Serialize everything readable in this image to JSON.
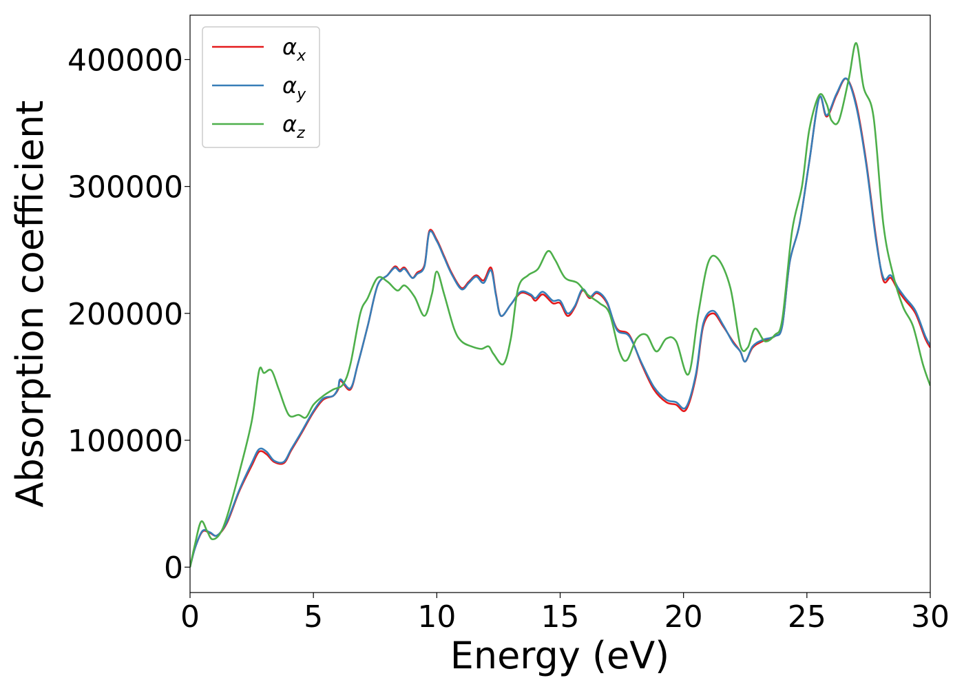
{
  "chart_data": {
    "type": "line",
    "title": "",
    "xlabel": "Energy (eV)",
    "ylabel": "Absorption coefficient",
    "xlim": [
      0,
      30
    ],
    "ylim": [
      -20000,
      435000
    ],
    "xticks": [
      0,
      5,
      10,
      15,
      20,
      25,
      30
    ],
    "yticks": [
      0,
      100000,
      200000,
      300000,
      400000
    ],
    "grid": false,
    "legend_position": "upper-left",
    "series": [
      {
        "name": "α_x",
        "symbol": "α",
        "subscript": "x",
        "color": "#e41a1c",
        "points": [
          [
            0,
            0
          ],
          [
            0.2,
            15000
          ],
          [
            0.5,
            28000
          ],
          [
            0.8,
            27000
          ],
          [
            1.1,
            25000
          ],
          [
            1.5,
            35000
          ],
          [
            2.0,
            60000
          ],
          [
            2.5,
            80000
          ],
          [
            2.8,
            91000
          ],
          [
            3.1,
            89000
          ],
          [
            3.4,
            83000
          ],
          [
            3.8,
            82000
          ],
          [
            4.1,
            92000
          ],
          [
            4.5,
            105000
          ],
          [
            5.0,
            122000
          ],
          [
            5.4,
            132000
          ],
          [
            5.8,
            135000
          ],
          [
            6.0,
            140000
          ],
          [
            6.1,
            147000
          ],
          [
            6.5,
            140000
          ],
          [
            6.8,
            160000
          ],
          [
            7.2,
            190000
          ],
          [
            7.6,
            222000
          ],
          [
            8.0,
            230000
          ],
          [
            8.3,
            237000
          ],
          [
            8.5,
            234000
          ],
          [
            8.7,
            236000
          ],
          [
            9.0,
            228000
          ],
          [
            9.2,
            232000
          ],
          [
            9.5,
            238000
          ],
          [
            9.7,
            265000
          ],
          [
            10.0,
            258000
          ],
          [
            10.3,
            245000
          ],
          [
            10.6,
            232000
          ],
          [
            11.0,
            220000
          ],
          [
            11.3,
            225000
          ],
          [
            11.6,
            230000
          ],
          [
            11.9,
            226000
          ],
          [
            12.2,
            236000
          ],
          [
            12.4,
            215000
          ],
          [
            12.6,
            198000
          ],
          [
            13.0,
            207000
          ],
          [
            13.4,
            216000
          ],
          [
            13.8,
            214000
          ],
          [
            14.0,
            210000
          ],
          [
            14.3,
            215000
          ],
          [
            14.7,
            208000
          ],
          [
            15.0,
            208000
          ],
          [
            15.3,
            198000
          ],
          [
            15.6,
            205000
          ],
          [
            15.9,
            218000
          ],
          [
            16.2,
            212000
          ],
          [
            16.5,
            216000
          ],
          [
            16.9,
            208000
          ],
          [
            17.3,
            188000
          ],
          [
            17.8,
            183000
          ],
          [
            18.3,
            160000
          ],
          [
            18.8,
            140000
          ],
          [
            19.3,
            130000
          ],
          [
            19.7,
            128000
          ],
          [
            20.1,
            124000
          ],
          [
            20.5,
            150000
          ],
          [
            20.8,
            190000
          ],
          [
            21.2,
            200000
          ],
          [
            21.6,
            190000
          ],
          [
            22.0,
            178000
          ],
          [
            22.3,
            170000
          ],
          [
            22.5,
            162000
          ],
          [
            22.8,
            173000
          ],
          [
            23.2,
            178000
          ],
          [
            23.7,
            182000
          ],
          [
            24.0,
            190000
          ],
          [
            24.3,
            240000
          ],
          [
            24.7,
            270000
          ],
          [
            25.1,
            320000
          ],
          [
            25.5,
            370000
          ],
          [
            25.8,
            355000
          ],
          [
            26.2,
            372000
          ],
          [
            26.6,
            385000
          ],
          [
            27.0,
            365000
          ],
          [
            27.4,
            320000
          ],
          [
            27.8,
            260000
          ],
          [
            28.1,
            226000
          ],
          [
            28.4,
            228000
          ],
          [
            28.7,
            218000
          ],
          [
            29.0,
            210000
          ],
          [
            29.4,
            200000
          ],
          [
            29.8,
            180000
          ],
          [
            30.0,
            173000
          ]
        ]
      },
      {
        "name": "α_y",
        "symbol": "α",
        "subscript": "y",
        "color": "#377eb8",
        "points": [
          [
            0,
            0
          ],
          [
            0.2,
            15000
          ],
          [
            0.5,
            28500
          ],
          [
            0.8,
            27500
          ],
          [
            1.1,
            25000
          ],
          [
            1.5,
            36000
          ],
          [
            2.0,
            61000
          ],
          [
            2.5,
            82000
          ],
          [
            2.8,
            93000
          ],
          [
            3.1,
            91000
          ],
          [
            3.4,
            84000
          ],
          [
            3.8,
            83000
          ],
          [
            4.1,
            93000
          ],
          [
            4.5,
            106000
          ],
          [
            5.0,
            123000
          ],
          [
            5.4,
            133000
          ],
          [
            5.8,
            135000
          ],
          [
            6.0,
            141000
          ],
          [
            6.1,
            148000
          ],
          [
            6.5,
            141000
          ],
          [
            6.8,
            160000
          ],
          [
            7.2,
            190000
          ],
          [
            7.6,
            222000
          ],
          [
            8.0,
            230000
          ],
          [
            8.3,
            236000
          ],
          [
            8.5,
            233000
          ],
          [
            8.7,
            235000
          ],
          [
            9.0,
            228000
          ],
          [
            9.2,
            231000
          ],
          [
            9.5,
            237000
          ],
          [
            9.7,
            264000
          ],
          [
            10.0,
            257000
          ],
          [
            10.3,
            244000
          ],
          [
            10.6,
            231000
          ],
          [
            11.0,
            219000
          ],
          [
            11.3,
            224000
          ],
          [
            11.6,
            229000
          ],
          [
            11.9,
            224000
          ],
          [
            12.2,
            234000
          ],
          [
            12.4,
            214000
          ],
          [
            12.6,
            198000
          ],
          [
            13.0,
            207000
          ],
          [
            13.4,
            217000
          ],
          [
            13.8,
            215000
          ],
          [
            14.0,
            212000
          ],
          [
            14.3,
            217000
          ],
          [
            14.7,
            210000
          ],
          [
            15.0,
            210000
          ],
          [
            15.3,
            200000
          ],
          [
            15.6,
            206000
          ],
          [
            15.9,
            219000
          ],
          [
            16.2,
            213000
          ],
          [
            16.5,
            217000
          ],
          [
            16.9,
            209000
          ],
          [
            17.3,
            187000
          ],
          [
            17.8,
            182000
          ],
          [
            18.3,
            161000
          ],
          [
            18.8,
            142000
          ],
          [
            19.3,
            132000
          ],
          [
            19.7,
            130000
          ],
          [
            20.1,
            126000
          ],
          [
            20.5,
            152000
          ],
          [
            20.8,
            192000
          ],
          [
            21.2,
            202000
          ],
          [
            21.6,
            191000
          ],
          [
            22.0,
            177000
          ],
          [
            22.3,
            170000
          ],
          [
            22.5,
            162000
          ],
          [
            22.8,
            174000
          ],
          [
            23.2,
            179000
          ],
          [
            23.7,
            182000
          ],
          [
            24.0,
            190000
          ],
          [
            24.3,
            240000
          ],
          [
            24.7,
            270000
          ],
          [
            25.1,
            320000
          ],
          [
            25.5,
            370000
          ],
          [
            25.8,
            356000
          ],
          [
            26.2,
            373000
          ],
          [
            26.6,
            385000
          ],
          [
            27.0,
            363000
          ],
          [
            27.4,
            318000
          ],
          [
            27.8,
            258000
          ],
          [
            28.1,
            228000
          ],
          [
            28.4,
            230000
          ],
          [
            28.7,
            220000
          ],
          [
            29.0,
            212000
          ],
          [
            29.4,
            202000
          ],
          [
            29.8,
            182000
          ],
          [
            30.0,
            175000
          ]
        ]
      },
      {
        "name": "α_z",
        "symbol": "α",
        "subscript": "z",
        "color": "#4daf4a",
        "points": [
          [
            0,
            0
          ],
          [
            0.2,
            18000
          ],
          [
            0.45,
            36000
          ],
          [
            0.7,
            28000
          ],
          [
            0.9,
            22000
          ],
          [
            1.2,
            26000
          ],
          [
            1.5,
            40000
          ],
          [
            2.0,
            75000
          ],
          [
            2.5,
            115000
          ],
          [
            2.8,
            155000
          ],
          [
            3.0,
            153000
          ],
          [
            3.3,
            155000
          ],
          [
            3.6,
            140000
          ],
          [
            4.0,
            120000
          ],
          [
            4.4,
            120000
          ],
          [
            4.7,
            118000
          ],
          [
            5.0,
            128000
          ],
          [
            5.4,
            135000
          ],
          [
            5.8,
            140000
          ],
          [
            6.2,
            144000
          ],
          [
            6.5,
            160000
          ],
          [
            6.9,
            200000
          ],
          [
            7.2,
            212000
          ],
          [
            7.6,
            228000
          ],
          [
            8.0,
            225000
          ],
          [
            8.4,
            218000
          ],
          [
            8.7,
            222000
          ],
          [
            9.1,
            213000
          ],
          [
            9.5,
            198000
          ],
          [
            9.8,
            215000
          ],
          [
            10.0,
            233000
          ],
          [
            10.3,
            215000
          ],
          [
            10.7,
            188000
          ],
          [
            11.0,
            178000
          ],
          [
            11.4,
            174000
          ],
          [
            11.8,
            172000
          ],
          [
            12.1,
            174000
          ],
          [
            12.3,
            168000
          ],
          [
            12.7,
            160000
          ],
          [
            13.0,
            180000
          ],
          [
            13.3,
            220000
          ],
          [
            13.7,
            230000
          ],
          [
            14.1,
            235000
          ],
          [
            14.5,
            249000
          ],
          [
            14.8,
            242000
          ],
          [
            15.2,
            228000
          ],
          [
            15.7,
            224000
          ],
          [
            16.1,
            215000
          ],
          [
            16.6,
            208000
          ],
          [
            17.0,
            200000
          ],
          [
            17.4,
            170000
          ],
          [
            17.7,
            163000
          ],
          [
            18.1,
            180000
          ],
          [
            18.5,
            183000
          ],
          [
            18.9,
            170000
          ],
          [
            19.3,
            180000
          ],
          [
            19.7,
            178000
          ],
          [
            20.2,
            152000
          ],
          [
            20.6,
            200000
          ],
          [
            21.0,
            240000
          ],
          [
            21.4,
            243000
          ],
          [
            21.9,
            220000
          ],
          [
            22.3,
            175000
          ],
          [
            22.6,
            173000
          ],
          [
            22.9,
            188000
          ],
          [
            23.3,
            178000
          ],
          [
            23.7,
            183000
          ],
          [
            24.0,
            195000
          ],
          [
            24.4,
            265000
          ],
          [
            24.8,
            300000
          ],
          [
            25.1,
            345000
          ],
          [
            25.5,
            372000
          ],
          [
            25.8,
            365000
          ],
          [
            26.0,
            352000
          ],
          [
            26.3,
            352000
          ],
          [
            26.7,
            385000
          ],
          [
            27.0,
            413000
          ],
          [
            27.3,
            378000
          ],
          [
            27.7,
            355000
          ],
          [
            28.1,
            270000
          ],
          [
            28.5,
            230000
          ],
          [
            28.9,
            205000
          ],
          [
            29.3,
            190000
          ],
          [
            29.7,
            160000
          ],
          [
            30.0,
            143000
          ]
        ]
      }
    ]
  }
}
